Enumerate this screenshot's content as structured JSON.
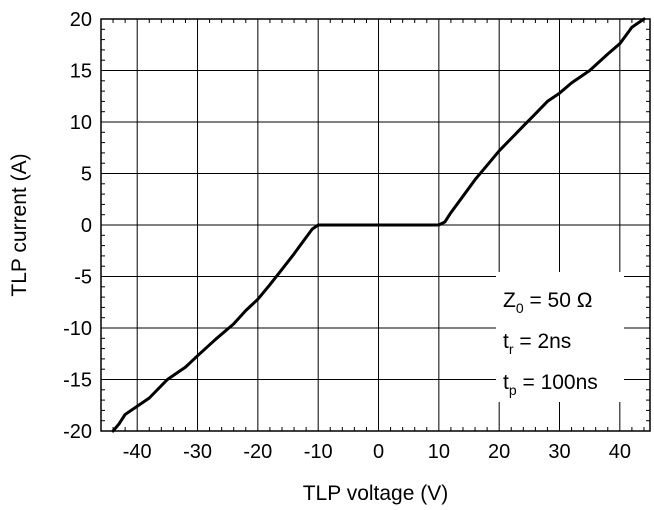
{
  "chart_data": {
    "type": "line",
    "title": "",
    "xlabel": "TLP voltage (V)",
    "ylabel": "TLP current (A)",
    "xlim": [
      -46,
      45
    ],
    "ylim": [
      -20,
      20
    ],
    "xticks": [
      -40,
      -30,
      -20,
      -10,
      0,
      10,
      20,
      30,
      40
    ],
    "yticks": [
      -20,
      -15,
      -10,
      -5,
      0,
      5,
      10,
      15,
      20
    ],
    "grid": true,
    "series": [
      {
        "color": "#000000",
        "points": [
          [
            -44,
            -20
          ],
          [
            -43,
            -19.3
          ],
          [
            -42,
            -18.4
          ],
          [
            -40,
            -17.6
          ],
          [
            -38,
            -16.8
          ],
          [
            -35,
            -15.0
          ],
          [
            -32,
            -13.8
          ],
          [
            -30,
            -12.7
          ],
          [
            -27,
            -11.1
          ],
          [
            -24,
            -9.6
          ],
          [
            -22,
            -8.3
          ],
          [
            -20,
            -7.2
          ],
          [
            -18,
            -5.8
          ],
          [
            -16,
            -4.3
          ],
          [
            -14,
            -2.8
          ],
          [
            -12,
            -1.2
          ],
          [
            -11,
            -0.4
          ],
          [
            -10,
            0
          ],
          [
            0,
            0
          ],
          [
            10,
            0
          ],
          [
            11,
            0.3
          ],
          [
            12,
            1.2
          ],
          [
            14,
            2.8
          ],
          [
            16,
            4.4
          ],
          [
            18,
            5.8
          ],
          [
            20,
            7.2
          ],
          [
            22,
            8.4
          ],
          [
            24,
            9.6
          ],
          [
            26,
            10.8
          ],
          [
            28,
            12.0
          ],
          [
            30,
            12.8
          ],
          [
            32,
            13.8
          ],
          [
            35,
            15.0
          ],
          [
            38,
            16.6
          ],
          [
            40,
            17.6
          ],
          [
            42,
            19.2
          ],
          [
            43,
            19.6
          ],
          [
            44,
            20
          ]
        ]
      }
    ],
    "annotations": {
      "z0": {
        "main": "Z",
        "sub": "0",
        "rest": " = 50 Ω"
      },
      "tr": {
        "main": "t",
        "sub": "r",
        "rest": " = 2ns"
      },
      "tp": {
        "main": "t",
        "sub": "p",
        "rest": " = 100ns"
      }
    }
  }
}
